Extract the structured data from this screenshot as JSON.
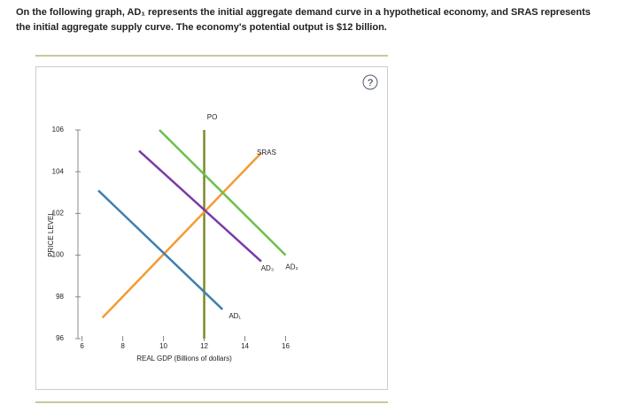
{
  "header": {
    "text": "On the following graph, AD₁ represents the initial aggregate demand curve in a hypothetical economy, and SRAS represents the initial aggregate supply curve. The economy's potential output is $12 billion.",
    "help": "?"
  },
  "chart_data": {
    "type": "line",
    "x_label": "REAL GDP (Billions of dollars)",
    "y_label": "PRICE LEVEL",
    "xlim": [
      5.8,
      16.5
    ],
    "ylim": [
      96,
      106
    ],
    "xticks": [
      6,
      8,
      10,
      12,
      14,
      16
    ],
    "yticks": [
      96,
      98,
      100,
      102,
      104,
      106
    ],
    "series": [
      {
        "name": "PO",
        "color": "#7d8a2c",
        "x": [
          12,
          12
        ],
        "values": [
          106,
          96
        ]
      },
      {
        "name": "SRAS",
        "color": "#f39b32",
        "x": [
          7,
          14.8
        ],
        "values": [
          97,
          104.9
        ]
      },
      {
        "name": "AD₂",
        "color": "#6cbf4c",
        "x": [
          9.8,
          16
        ],
        "values": [
          106,
          100
        ]
      },
      {
        "name": "AD₃",
        "color": "#7a3aa8",
        "x": [
          8.8,
          14.8
        ],
        "values": [
          105,
          99.7
        ]
      },
      {
        "name": "AD₁",
        "color": "#3f7fb0",
        "x": [
          6.8,
          12.9
        ],
        "values": [
          103.1,
          97.4
        ]
      }
    ]
  }
}
